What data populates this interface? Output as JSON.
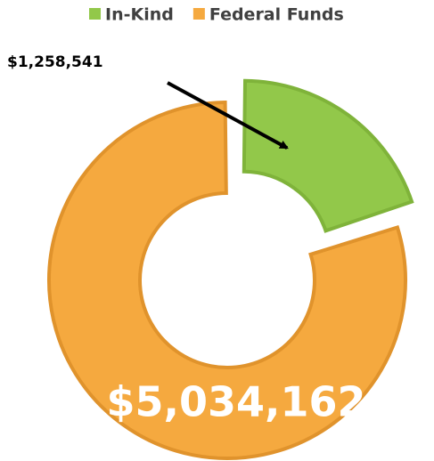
{
  "chart_data": {
    "type": "donut",
    "categories": [
      "In-Kind",
      "Federal Funds"
    ],
    "values": [
      1258541,
      5034162
    ],
    "value_labels": [
      "$1,258,541",
      "$5,034,162"
    ],
    "colors": [
      "#92c84a",
      "#f5a93f"
    ],
    "legend": "top"
  }
}
